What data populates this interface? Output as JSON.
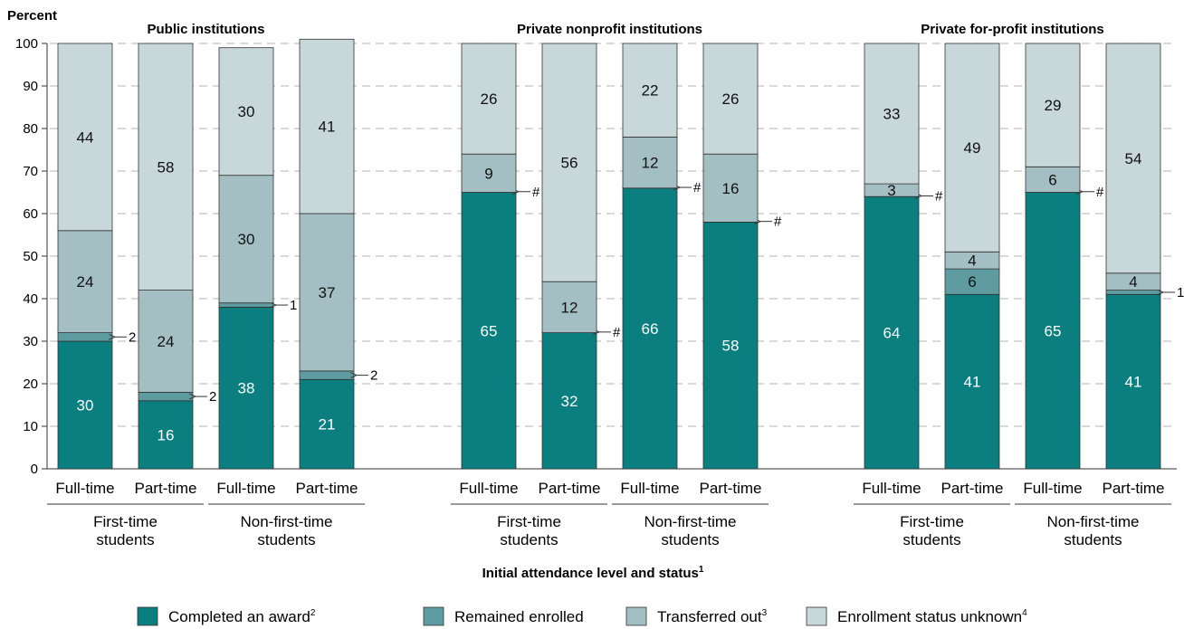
{
  "chart_data": {
    "type": "bar",
    "stacked": true,
    "ylabel": "Percent",
    "xlabel": "Initial attendance level and status",
    "xlabel_sup": "1",
    "ylim": [
      0,
      100
    ],
    "yticks": [
      "0",
      "10",
      "20",
      "30",
      "40",
      "50",
      "60",
      "70",
      "80",
      "90",
      "100"
    ],
    "grid": "horizontal dashed",
    "legend_position": "bottom",
    "colors": {
      "completed": "#0b7f80",
      "remained": "#5e9ca2",
      "transferred": "#a3bfc3",
      "unknown": "#c7d7da"
    },
    "legend": [
      {
        "key": "completed",
        "label": "Completed an award",
        "sup": "2"
      },
      {
        "key": "remained",
        "label": "Remained enrolled",
        "sup": ""
      },
      {
        "key": "transferred",
        "label": "Transferred out",
        "sup": "3"
      },
      {
        "key": "unknown",
        "label": "Enrollment status unknown",
        "sup": "4"
      }
    ],
    "panels": [
      {
        "title": "Public institutions",
        "groups": [
          {
            "label": [
              "First-time",
              "students"
            ],
            "bars": [
              {
                "label": "Full-time",
                "values": {
                  "completed": 30,
                  "remained": 2,
                  "transferred": 24,
                  "unknown": 44
                },
                "labels": {
                  "completed": "30",
                  "remained": "2",
                  "transferred": "24",
                  "unknown": "44"
                }
              },
              {
                "label": "Part-time",
                "values": {
                  "completed": 16,
                  "remained": 2,
                  "transferred": 24,
                  "unknown": 58
                },
                "labels": {
                  "completed": "16",
                  "remained": "2",
                  "transferred": "24",
                  "unknown": "58"
                }
              }
            ]
          },
          {
            "label": [
              "Non-first-time",
              "students"
            ],
            "bars": [
              {
                "label": "Full-time",
                "values": {
                  "completed": 38,
                  "remained": 1,
                  "transferred": 30,
                  "unknown": 30
                },
                "labels": {
                  "completed": "38",
                  "remained": "1",
                  "transferred": "30",
                  "unknown": "30"
                }
              },
              {
                "label": "Part-time",
                "values": {
                  "completed": 21,
                  "remained": 2,
                  "transferred": 37,
                  "unknown": 41
                },
                "labels": {
                  "completed": "21",
                  "remained": "2",
                  "transferred": "37",
                  "unknown": "41"
                }
              }
            ]
          }
        ]
      },
      {
        "title": "Private nonprofit institutions",
        "groups": [
          {
            "label": [
              "First-time",
              "students"
            ],
            "bars": [
              {
                "label": "Full-time",
                "values": {
                  "completed": 65,
                  "remained": 0,
                  "transferred": 9,
                  "unknown": 26
                },
                "labels": {
                  "completed": "65",
                  "remained": "#",
                  "transferred": "9",
                  "unknown": "26"
                }
              },
              {
                "label": "Part-time",
                "values": {
                  "completed": 32,
                  "remained": 0,
                  "transferred": 12,
                  "unknown": 56
                },
                "labels": {
                  "completed": "32",
                  "remained": "#",
                  "transferred": "12",
                  "unknown": "56"
                }
              }
            ]
          },
          {
            "label": [
              "Non-first-time",
              "students"
            ],
            "bars": [
              {
                "label": "Full-time",
                "values": {
                  "completed": 66,
                  "remained": 0,
                  "transferred": 12,
                  "unknown": 22
                },
                "labels": {
                  "completed": "66",
                  "remained": "#",
                  "transferred": "12",
                  "unknown": "22"
                }
              },
              {
                "label": "Part-time",
                "values": {
                  "completed": 58,
                  "remained": 0,
                  "transferred": 16,
                  "unknown": 26
                },
                "labels": {
                  "completed": "58",
                  "remained": "#",
                  "transferred": "16",
                  "unknown": "26"
                }
              }
            ]
          }
        ]
      },
      {
        "title": "Private for-profit institutions",
        "groups": [
          {
            "label": [
              "First-time",
              "students"
            ],
            "bars": [
              {
                "label": "Full-time",
                "values": {
                  "completed": 64,
                  "remained": 0,
                  "transferred": 3,
                  "unknown": 33
                },
                "labels": {
                  "completed": "64",
                  "remained": "#",
                  "transferred": "3",
                  "unknown": "33"
                }
              },
              {
                "label": "Part-time",
                "values": {
                  "completed": 41,
                  "remained": 6,
                  "transferred": 4,
                  "unknown": 49
                },
                "labels": {
                  "completed": "41",
                  "remained": "6",
                  "transferred": "4",
                  "unknown": "49"
                }
              }
            ]
          },
          {
            "label": [
              "Non-first-time",
              "students"
            ],
            "bars": [
              {
                "label": "Full-time",
                "values": {
                  "completed": 65,
                  "remained": 0,
                  "transferred": 6,
                  "unknown": 29
                },
                "labels": {
                  "completed": "65",
                  "remained": "#",
                  "transferred": "6",
                  "unknown": "29"
                }
              },
              {
                "label": "Part-time",
                "values": {
                  "completed": 41,
                  "remained": 1,
                  "transferred": 4,
                  "unknown": 54
                },
                "labels": {
                  "completed": "41",
                  "remained": "1",
                  "transferred": "4",
                  "unknown": "54"
                }
              }
            ]
          }
        ]
      }
    ]
  }
}
